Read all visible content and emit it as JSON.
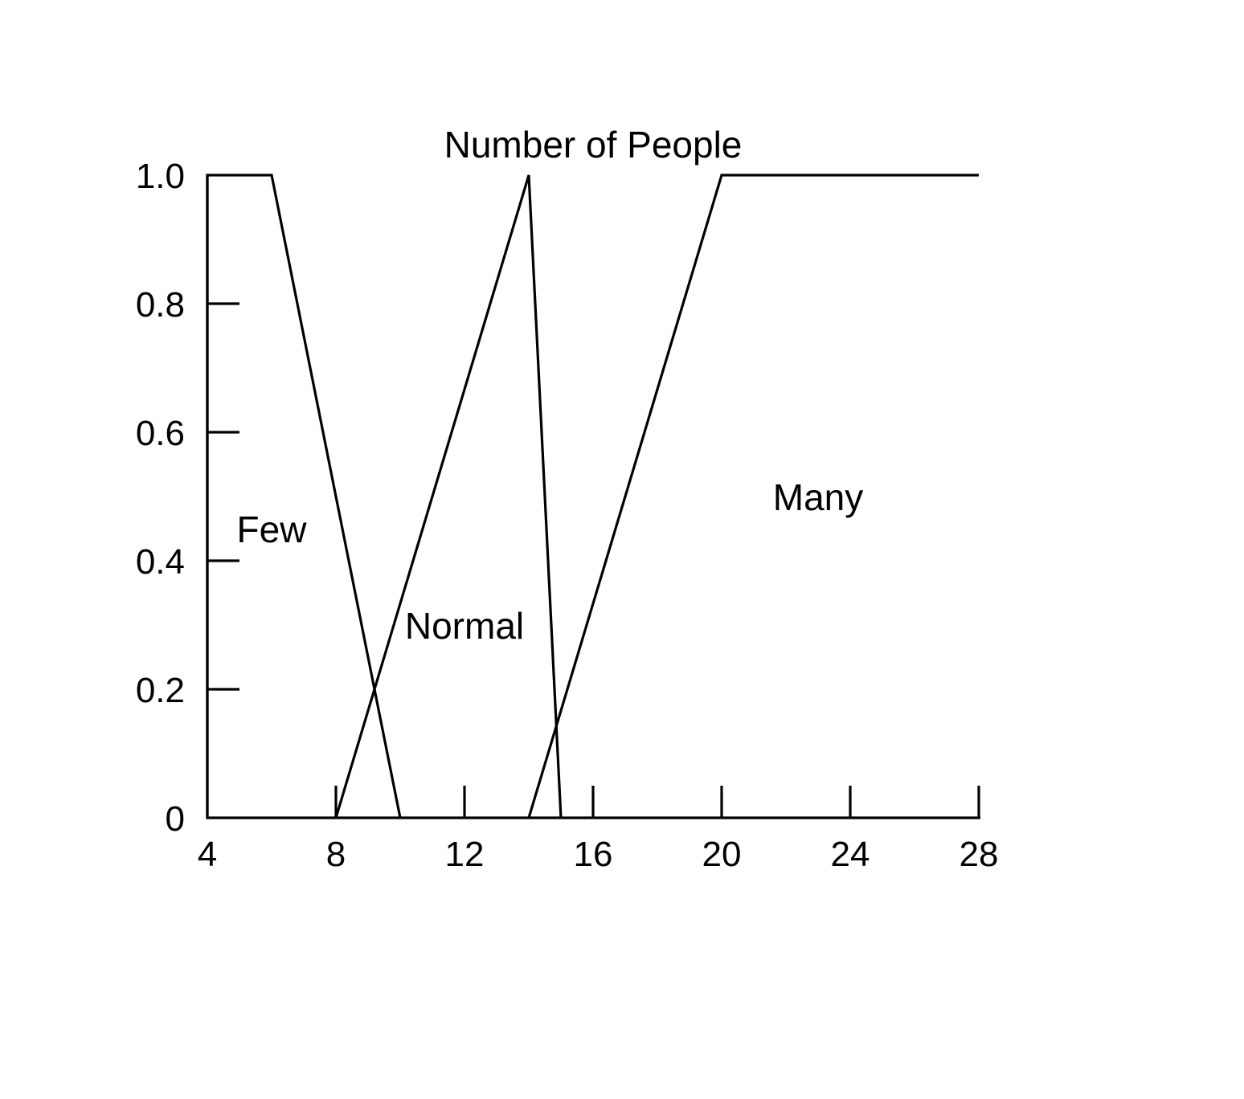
{
  "chart_data": {
    "type": "line",
    "title": "Number of People",
    "xlabel": "",
    "ylabel": "",
    "xlim": [
      4,
      28
    ],
    "ylim": [
      0,
      1.0
    ],
    "x_ticks": [
      4,
      8,
      12,
      16,
      20,
      24,
      28
    ],
    "x_tick_labels": [
      "4",
      "8",
      "12",
      "16",
      "20",
      "24",
      "28"
    ],
    "y_ticks": [
      0,
      0.2,
      0.4,
      0.6,
      0.8,
      1.0
    ],
    "y_tick_labels": [
      "0",
      "0.2",
      "0.4",
      "0.6",
      "0.8",
      "1.0"
    ],
    "grid": false,
    "legend": "none",
    "line_color": "#000000",
    "series": [
      {
        "name": "Few",
        "x": [
          4,
          4,
          6,
          10
        ],
        "y": [
          0,
          1.0,
          1.0,
          0
        ]
      },
      {
        "name": "Normal",
        "x": [
          8,
          14,
          15
        ],
        "y": [
          0,
          1.0,
          0
        ]
      },
      {
        "name": "Many",
        "x": [
          14,
          20,
          28
        ],
        "y": [
          0,
          1.0,
          1.0
        ]
      }
    ]
  }
}
